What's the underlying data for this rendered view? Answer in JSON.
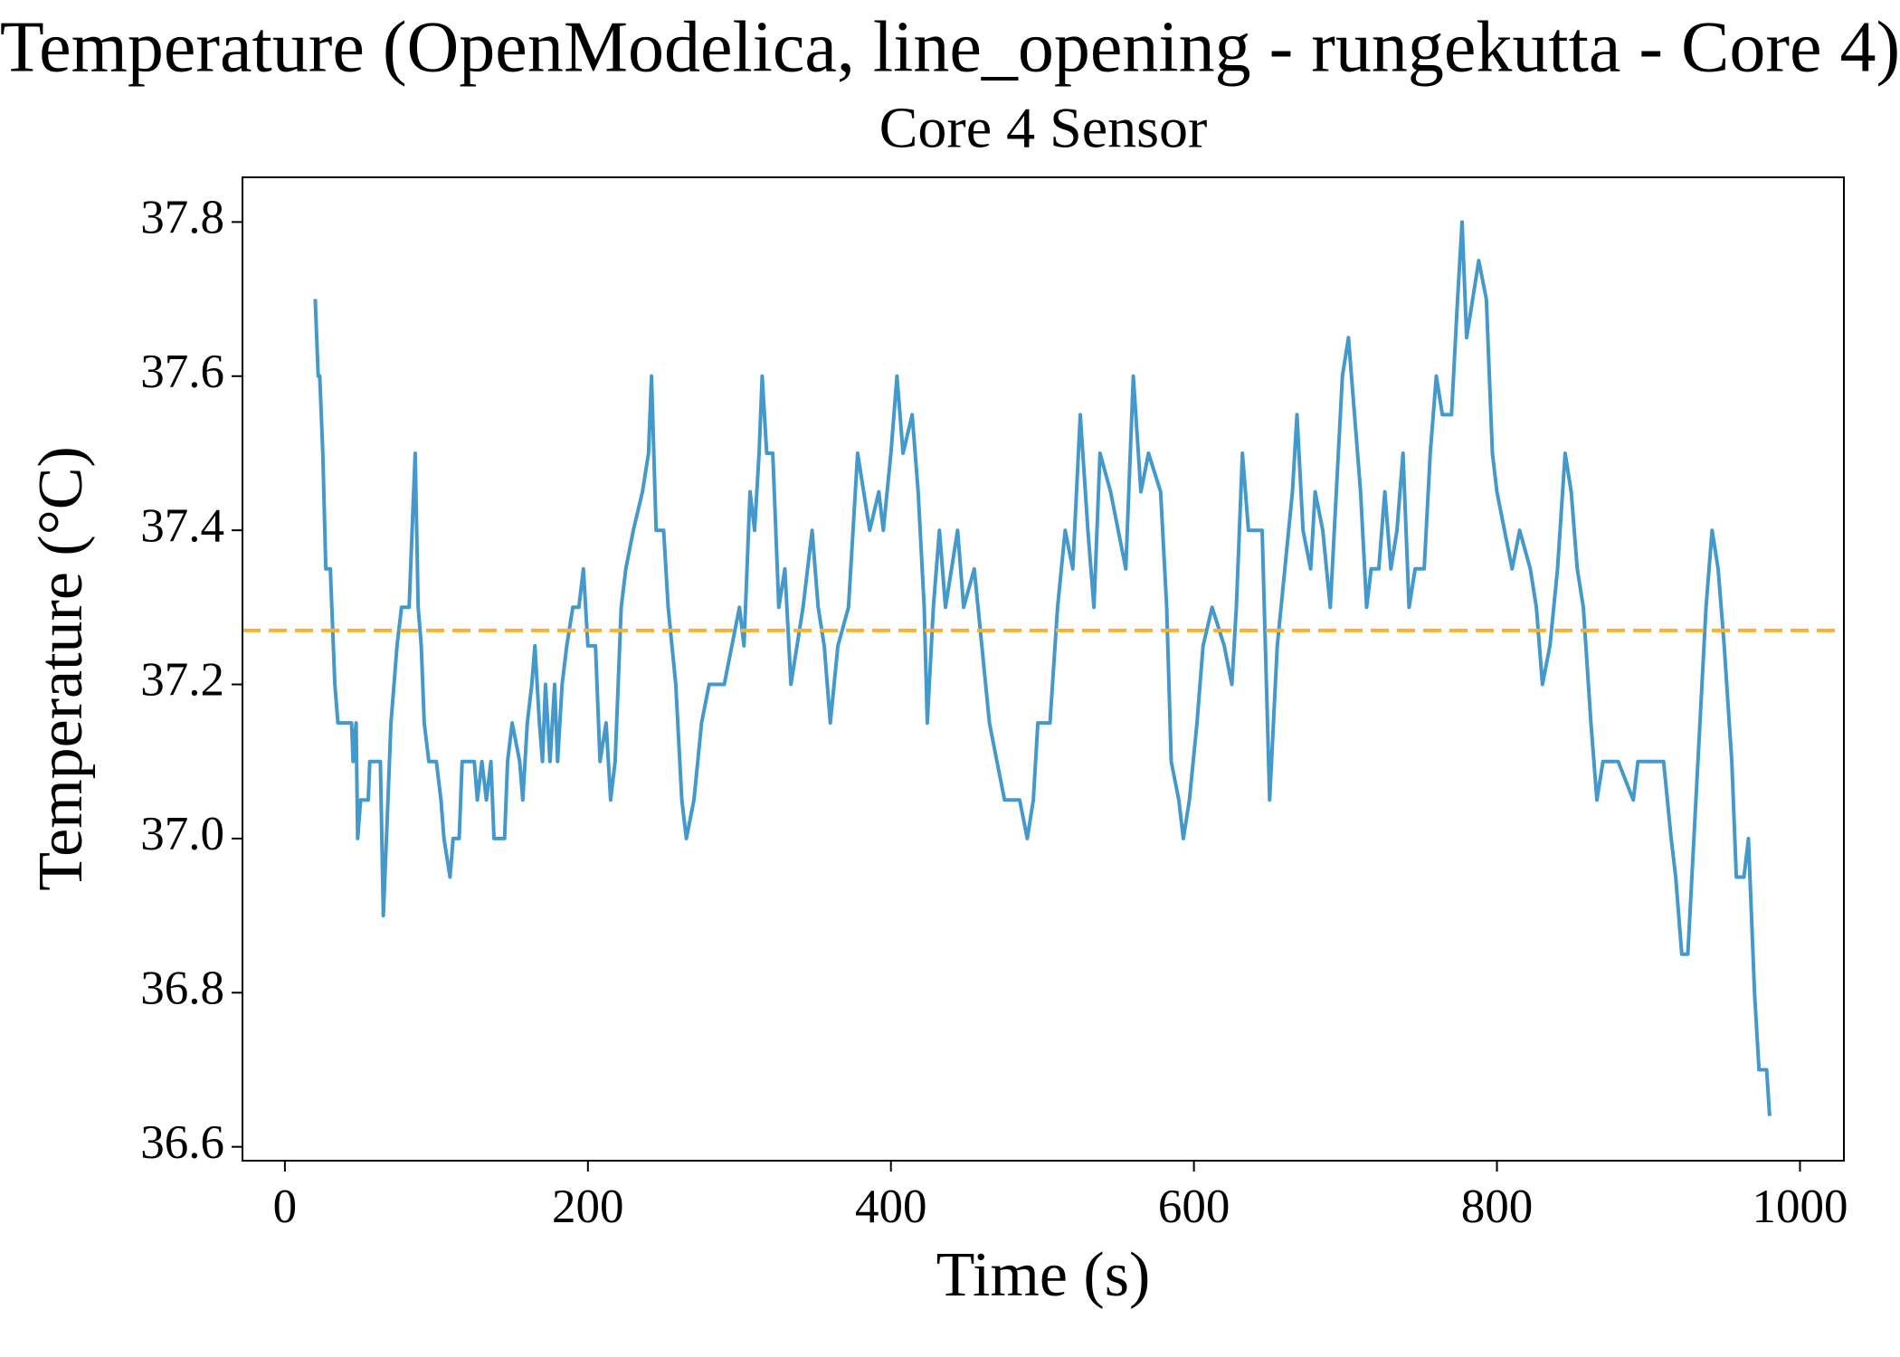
{
  "chart_data": {
    "type": "line",
    "title": "Temperature (OpenModelica, line_opening - rungekutta - Core 4)",
    "subtitle": "Core 4 Sensor",
    "x_label": "Time (s)",
    "y_label": "Temperature (°C)",
    "xlim": [
      -28,
      1029
    ],
    "ylim": [
      36.582,
      37.858
    ],
    "xticks": [
      0,
      200,
      400,
      600,
      800,
      1000
    ],
    "yticks": [
      {
        "value": 36.6,
        "label": "36.6"
      },
      {
        "value": 36.8,
        "label": "36.8"
      },
      {
        "value": 37.0,
        "label": "37.0"
      },
      {
        "value": 37.2,
        "label": "37.2"
      },
      {
        "value": 37.4,
        "label": "37.4"
      },
      {
        "value": 37.6,
        "label": "37.6"
      },
      {
        "value": 37.8,
        "label": "37.8"
      }
    ],
    "hline": {
      "value": 37.27,
      "color": "#fbb12e",
      "dashed": true
    },
    "series": [
      {
        "color": "#4499cc",
        "x": [
          20,
          22,
          23,
          25,
          27,
          30,
          33,
          35,
          40,
          44,
          45,
          47,
          48,
          50,
          55,
          56,
          63,
          65,
          68,
          70,
          72,
          74,
          77,
          82,
          84,
          86,
          88,
          90,
          92,
          95,
          100,
          103,
          105,
          109,
          111,
          115,
          117,
          125,
          127,
          130,
          133,
          136,
          138,
          145,
          147,
          150,
          155,
          157,
          160,
          163,
          165,
          168,
          170,
          172,
          175,
          178,
          180,
          183,
          186,
          190,
          194,
          197,
          200,
          205,
          208,
          212,
          215,
          218,
          222,
          225,
          230,
          236,
          240,
          242,
          245,
          250,
          253,
          258,
          262,
          265,
          270,
          275,
          280,
          290,
          295,
          300,
          303,
          307,
          310,
          313,
          315,
          318,
          322,
          326,
          330,
          334,
          338,
          342,
          348,
          352,
          356,
          360,
          365,
          372,
          378,
          382,
          386,
          392,
          395,
          400,
          404,
          408,
          414,
          418,
          422,
          424,
          428,
          432,
          436,
          440,
          444,
          448,
          455,
          465,
          470,
          475,
          485,
          490,
          494,
          497,
          505,
          510,
          515,
          520,
          525,
          530,
          534,
          538,
          545,
          550,
          555,
          560,
          565,
          570,
          578,
          582,
          585,
          590,
          593,
          597,
          602,
          606,
          612,
          620,
          625,
          628,
          632,
          636,
          645,
          650,
          655,
          660,
          665,
          668,
          672,
          677,
          680,
          685,
          690,
          694,
          698,
          702,
          706,
          710,
          714,
          717,
          722,
          726,
          730,
          734,
          738,
          742,
          746,
          752,
          756,
          760,
          764,
          770,
          774,
          777,
          780,
          784,
          788,
          793,
          797,
          800,
          805,
          810,
          815,
          822,
          826,
          830,
          835,
          840,
          845,
          849,
          853,
          857,
          862,
          866,
          870,
          875,
          880,
          890,
          893,
          910,
          915,
          918,
          922,
          926,
          930,
          934,
          938,
          942,
          946,
          950,
          955,
          958,
          963,
          966,
          970,
          973,
          978,
          980
        ],
        "values": [
          37.7,
          37.6,
          37.6,
          37.5,
          37.35,
          37.35,
          37.2,
          37.15,
          37.15,
          37.15,
          37.1,
          37.15,
          37.0,
          37.05,
          37.05,
          37.1,
          37.1,
          36.9,
          37.05,
          37.15,
          37.2,
          37.25,
          37.3,
          37.3,
          37.4,
          37.5,
          37.3,
          37.25,
          37.15,
          37.1,
          37.1,
          37.05,
          37.0,
          36.95,
          37.0,
          37.0,
          37.1,
          37.1,
          37.05,
          37.1,
          37.05,
          37.1,
          37.0,
          37.0,
          37.1,
          37.15,
          37.1,
          37.05,
          37.15,
          37.2,
          37.25,
          37.15,
          37.1,
          37.2,
          37.1,
          37.2,
          37.1,
          37.2,
          37.25,
          37.3,
          37.3,
          37.35,
          37.25,
          37.25,
          37.1,
          37.15,
          37.05,
          37.1,
          37.3,
          37.35,
          37.4,
          37.45,
          37.5,
          37.6,
          37.4,
          37.4,
          37.3,
          37.2,
          37.05,
          37.0,
          37.05,
          37.15,
          37.2,
          37.2,
          37.25,
          37.3,
          37.25,
          37.45,
          37.4,
          37.5,
          37.6,
          37.5,
          37.5,
          37.3,
          37.35,
          37.2,
          37.25,
          37.3,
          37.4,
          37.3,
          37.25,
          37.15,
          37.25,
          37.3,
          37.5,
          37.45,
          37.4,
          37.45,
          37.4,
          37.5,
          37.6,
          37.5,
          37.55,
          37.45,
          37.3,
          37.15,
          37.3,
          37.4,
          37.3,
          37.35,
          37.4,
          37.3,
          37.35,
          37.15,
          37.1,
          37.05,
          37.05,
          37.0,
          37.05,
          37.15,
          37.15,
          37.3,
          37.4,
          37.35,
          37.55,
          37.4,
          37.3,
          37.5,
          37.45,
          37.4,
          37.35,
          37.6,
          37.45,
          37.5,
          37.45,
          37.3,
          37.1,
          37.05,
          37.0,
          37.05,
          37.15,
          37.25,
          37.3,
          37.25,
          37.2,
          37.3,
          37.5,
          37.4,
          37.4,
          37.05,
          37.25,
          37.35,
          37.45,
          37.55,
          37.4,
          37.35,
          37.45,
          37.4,
          37.3,
          37.45,
          37.6,
          37.65,
          37.55,
          37.45,
          37.3,
          37.35,
          37.35,
          37.45,
          37.35,
          37.4,
          37.5,
          37.3,
          37.35,
          37.35,
          37.5,
          37.6,
          37.55,
          37.55,
          37.7,
          37.8,
          37.65,
          37.7,
          37.75,
          37.7,
          37.5,
          37.45,
          37.4,
          37.35,
          37.4,
          37.35,
          37.3,
          37.2,
          37.25,
          37.35,
          37.5,
          37.45,
          37.35,
          37.3,
          37.15,
          37.05,
          37.1,
          37.1,
          37.1,
          37.05,
          37.1,
          37.1,
          37.0,
          36.95,
          36.85,
          36.85,
          37.0,
          37.15,
          37.3,
          37.4,
          37.35,
          37.25,
          37.1,
          36.95,
          36.95,
          37.0,
          36.8,
          36.7,
          36.7,
          36.64
        ]
      }
    ]
  }
}
